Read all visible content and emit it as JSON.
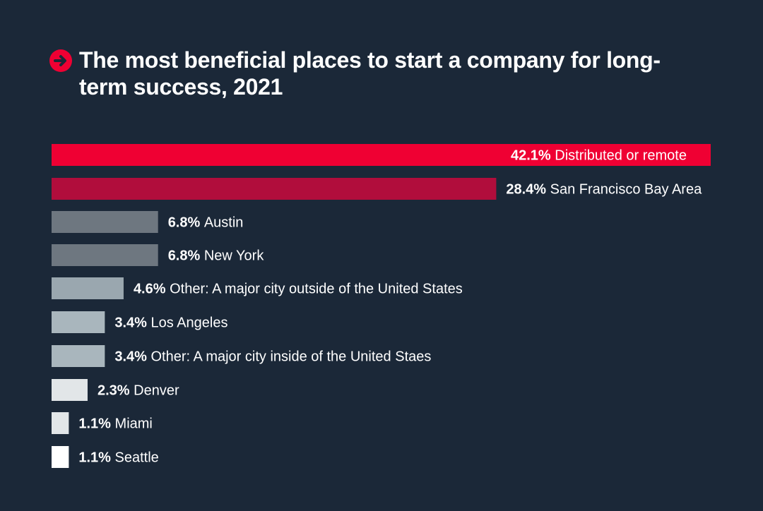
{
  "chart_data": {
    "type": "bar",
    "orientation": "horizontal",
    "title": "The most beneficial places to start a company for long-term success, 2021",
    "categories": [
      "Distributed or remote",
      "San Francisco Bay Area",
      "Austin",
      "New York",
      "Other: A major city outside of the United States",
      "Los Angeles",
      "Other: A major city inside of the United Staes",
      "Denver",
      "Miami",
      "Seattle"
    ],
    "values": [
      42.1,
      28.4,
      6.8,
      6.8,
      4.6,
      3.4,
      3.4,
      2.3,
      1.1,
      1.1
    ],
    "value_labels": [
      "42.1%",
      "28.4%",
      "6.8%",
      "6.8%",
      "4.6%",
      "3.4%",
      "3.4%",
      "2.3%",
      "1.1%",
      "1.1%"
    ],
    "bar_colors": [
      "#ef0033",
      "#b10d3c",
      "#6e7780",
      "#6e7780",
      "#9aa7af",
      "#a9b6bd",
      "#a9b6bd",
      "#e2e6e8",
      "#e2e6e8",
      "#ffffff"
    ],
    "label_inside": [
      true,
      false,
      false,
      false,
      false,
      false,
      false,
      false,
      false,
      false
    ],
    "xlim": [
      0,
      42.1
    ],
    "grid": false,
    "legend": "none"
  },
  "colors": {
    "background": "#1b2838",
    "accent": "#ef0033",
    "text": "#ffffff"
  },
  "icon": "arrow-right-circle-icon"
}
